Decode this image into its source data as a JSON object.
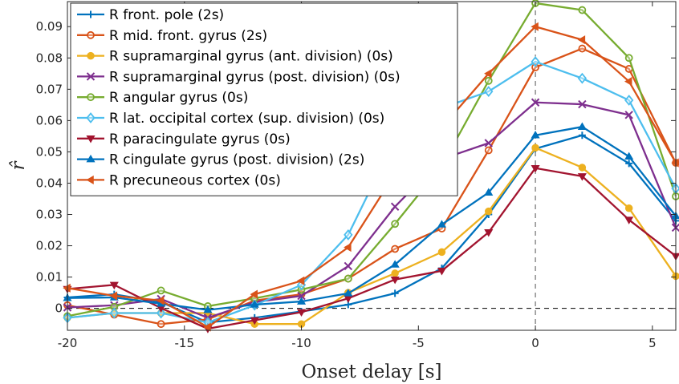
{
  "chart_data": {
    "type": "line",
    "xlabel": "Onset delay [s]",
    "ylabel": "r̂",
    "xlim": [
      -20,
      6
    ],
    "ylim": [
      -0.007,
      0.098
    ],
    "xticks": [
      -20,
      -15,
      -10,
      -5,
      0,
      5
    ],
    "xtick_labels": [
      "-20",
      "-15",
      "-10",
      "-5",
      "0",
      "5"
    ],
    "yticks": [
      0,
      0.01,
      0.02,
      0.03,
      0.04,
      0.05,
      0.06,
      0.07,
      0.08,
      0.09
    ],
    "ytick_labels": [
      "0",
      "0.01",
      "0.02",
      "0.03",
      "0.04",
      "0.05",
      "0.06",
      "0.07",
      "0.08",
      "0.09"
    ],
    "grid": false,
    "legend_position": "top-left",
    "reference_lines": [
      {
        "orientation": "horizontal",
        "value": 0,
        "style": "dashed"
      },
      {
        "orientation": "vertical",
        "value": 0,
        "style": "dashed"
      }
    ],
    "x": [
      -20,
      -18,
      -16,
      -14,
      -12,
      -10,
      -8,
      -6,
      -4,
      -2,
      0,
      2,
      4,
      6
    ],
    "series": [
      {
        "name": "R front. pole (2s)",
        "color": "#0072BD",
        "marker": "plus",
        "values": [
          0.0035,
          0.0045,
          0.002,
          -0.0045,
          -0.003,
          -0.001,
          0.0012,
          0.0048,
          0.0128,
          0.03,
          0.051,
          0.0553,
          0.0463,
          0.028
        ]
      },
      {
        "name": "R mid. front. gyrus (2s)",
        "color": "#D95319",
        "marker": "circle",
        "values": [
          0.001,
          -0.002,
          -0.005,
          -0.0035,
          0.0025,
          0.0045,
          0.0095,
          0.019,
          0.0255,
          0.0505,
          0.077,
          0.083,
          0.0765,
          0.0465
        ]
      },
      {
        "name": "R supramarginal gyrus (ant. division) (0s)",
        "color": "#EDB120",
        "marker": "circle-filled",
        "values": [
          -0.003,
          -0.0015,
          -0.0015,
          -0.0015,
          -0.005,
          -0.005,
          0.005,
          0.0112,
          0.018,
          0.031,
          0.0513,
          0.045,
          0.032,
          0.0103
        ]
      },
      {
        "name": "R supramarginal gyrus (post. division) (0s)",
        "color": "#7E2F8E",
        "marker": "x",
        "values": [
          0.0003,
          0.001,
          0.003,
          -0.003,
          0.002,
          0.004,
          0.0135,
          0.0325,
          0.0477,
          0.0528,
          0.0658,
          0.0652,
          0.0618,
          0.0258
        ]
      },
      {
        "name": "R angular gyrus (0s)",
        "color": "#77AC30",
        "marker": "circle",
        "values": [
          -0.0025,
          0.0005,
          0.0057,
          0.0007,
          0.0032,
          0.006,
          0.0095,
          0.027,
          0.0455,
          0.0727,
          0.0975,
          0.0953,
          0.08,
          0.0358
        ]
      },
      {
        "name": "R lat. occipital cortex (sup. division) (0s)",
        "color": "#4DBEEE",
        "marker": "diamond",
        "values": [
          -0.003,
          -0.0015,
          -0.0015,
          -0.0045,
          0.001,
          0.0075,
          0.0235,
          0.054,
          0.064,
          0.0693,
          0.0788,
          0.0735,
          0.0665,
          0.0383
        ]
      },
      {
        "name": "R paracingulate gyrus (0s)",
        "color": "#A2142F",
        "marker": "triangle-down",
        "values": [
          0.0062,
          0.0075,
          0.0001,
          -0.0065,
          -0.0038,
          -0.0012,
          0.0032,
          0.0092,
          0.012,
          0.0243,
          0.0448,
          0.0422,
          0.0283,
          0.0167
        ]
      },
      {
        "name": "R cingulate gyrus (post. division) (2s)",
        "color": "#0072BD",
        "marker": "triangle-up",
        "values": [
          0.0033,
          0.0035,
          0.0015,
          -0.0005,
          0.0012,
          0.0022,
          0.0048,
          0.014,
          0.0268,
          0.037,
          0.0553,
          0.058,
          0.0485,
          0.0295
        ]
      },
      {
        "name": "R precuneous cortex (0s)",
        "color": "#D95319",
        "marker": "triangle-left",
        "values": [
          0.0065,
          0.004,
          0.0025,
          -0.006,
          0.0045,
          0.0088,
          0.0195,
          0.043,
          0.0578,
          0.075,
          0.09,
          0.0858,
          0.0725,
          0.0465
        ]
      }
    ]
  }
}
